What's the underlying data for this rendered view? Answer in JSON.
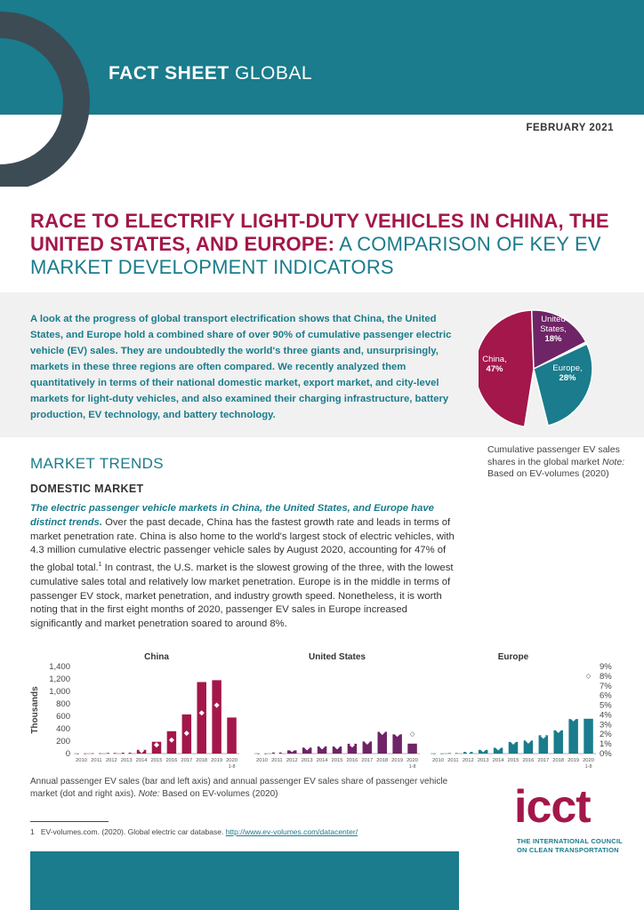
{
  "header": {
    "title_bold": "FACT SHEET",
    "title_light": "GLOBAL"
  },
  "date": "FEBRUARY 2021",
  "title": {
    "highlight": "RACE TO ELECTRIFY LIGHT-DUTY VEHICLES IN CHINA, THE UNITED STATES, AND EUROPE:",
    "rest": " A COMPARISON OF KEY EV MARKET DEVELOPMENT INDICATORS"
  },
  "summary": "A look at the progress of global transport electrification shows that China, the United States, and Europe hold a combined share of over 90% of cumulative passenger electric vehicle (EV) sales. They are undoubtedly the world's three giants and, unsurprisingly, markets in these three regions are often compared. We recently analyzed them quantitatively in terms of their national domestic market, export market, and city-level markets for light-duty vehicles, and also examined their charging infrastructure, battery production, EV technology, and battery technology.",
  "pie_caption": {
    "text": "Cumulative passenger EV sales shares in the global market ",
    "note": "Note:",
    "rest": " Based on EV-volumes (2020)"
  },
  "section_title": "MARKET TRENDS",
  "subsection_title": "DOMESTIC MARKET",
  "body": {
    "lead": "The electric passenger vehicle markets in China, the United States, and Europe have distinct trends.",
    "text1": " Over the past decade, China has the fastest growth rate and leads in terms of market penetration rate. China is also home to the world's largest stock of electric vehicles, with 4.3 million cumulative electric passenger vehicle sales by August 2020, accounting for 47% of the global total.",
    "sup": "1",
    "text2": " In contrast, the U.S. market is the slowest growing of the three, with the lowest cumulative sales total and relatively low market penetration. Europe is in the middle in terms of passenger EV stock, market penetration, and industry growth speed. Nonetheless, it is worth noting that in the first eight months of 2020, passenger EV sales in Europe increased significantly and market penetration soared to around 8%."
  },
  "chart_caption": {
    "text": "Annual passenger EV sales (bar and left axis) and annual passenger EV sales share of passenger vehicle market (dot and right axis). ",
    "note": "Note:",
    "rest": " Based on EV-volumes (2020)"
  },
  "footnote": {
    "num": "1",
    "text": "EV-volumes.com. (2020). Global electric car database.",
    "link": "http://www.ev-volumes.com/datacenter/"
  },
  "logo": {
    "word": "icct",
    "line1": "THE INTERNATIONAL COUNCIL",
    "line2": "ON CLEAN TRANSPORTATION"
  },
  "colors": {
    "teal": "#1a7c8c",
    "crimson": "#a3174a",
    "purple": "#6e2466",
    "dark_ring": "#3d4b55"
  },
  "chart_data": [
    {
      "type": "pie",
      "categories": [
        "China,",
        "United States,",
        "Europe,"
      ],
      "label_lines": [
        [
          "China,"
        ],
        [
          "United",
          "States,"
        ],
        [
          "Europe,"
        ]
      ],
      "values": [
        47,
        18,
        28
      ],
      "value_labels": [
        "47%",
        "18%",
        "28%"
      ],
      "colors": [
        "#a3174a",
        "#6e2466",
        "#1a7c8c"
      ]
    },
    {
      "type": "bar",
      "panel_titles": [
        "China",
        "United States",
        "Europe"
      ],
      "categories": [
        "2010",
        "2011",
        "2012",
        "2013",
        "2014",
        "2015",
        "2016",
        "2017",
        "2018",
        "2019",
        "2020"
      ],
      "last_sublabel": "1-8",
      "ylabel": "Thousands",
      "ylim": [
        0,
        1400
      ],
      "yticks": [
        0,
        200,
        400,
        600,
        800,
        1000,
        1200,
        1400
      ],
      "ytick_labels": [
        "0",
        "200",
        "400",
        "600",
        "800",
        "1,000",
        "1,200",
        "1,400"
      ],
      "y2lim": [
        0,
        9
      ],
      "y2ticks": [
        0,
        1,
        2,
        3,
        4,
        5,
        6,
        7,
        8,
        9
      ],
      "y2tick_labels": [
        "0%",
        "1%",
        "2%",
        "3%",
        "4%",
        "5%",
        "6%",
        "7%",
        "8%",
        "9%"
      ],
      "series": [
        {
          "name": "China",
          "color": "#a3174a",
          "values": [
            1,
            5,
            10,
            15,
            60,
            190,
            360,
            630,
            1150,
            1180,
            580
          ],
          "share": [
            0.0,
            0.0,
            0.1,
            0.1,
            0.3,
            0.9,
            1.4,
            2.1,
            4.2,
            5.0,
            5.5
          ]
        },
        {
          "name": "United States",
          "color": "#6e2466",
          "values": [
            1,
            18,
            52,
            97,
            116,
            114,
            158,
            195,
            350,
            310,
            160
          ],
          "share": [
            0.0,
            0.1,
            0.4,
            0.6,
            0.7,
            0.7,
            0.9,
            1.2,
            2.2,
            2.0,
            2.0
          ]
        },
        {
          "name": "Europe",
          "color": "#1a7c8c",
          "values": [
            1,
            9,
            27,
            60,
            94,
            188,
            210,
            295,
            375,
            555,
            560
          ],
          "share": [
            0.0,
            0.1,
            0.2,
            0.4,
            0.6,
            1.2,
            1.3,
            1.8,
            2.4,
            3.6,
            8.0
          ]
        }
      ]
    }
  ]
}
